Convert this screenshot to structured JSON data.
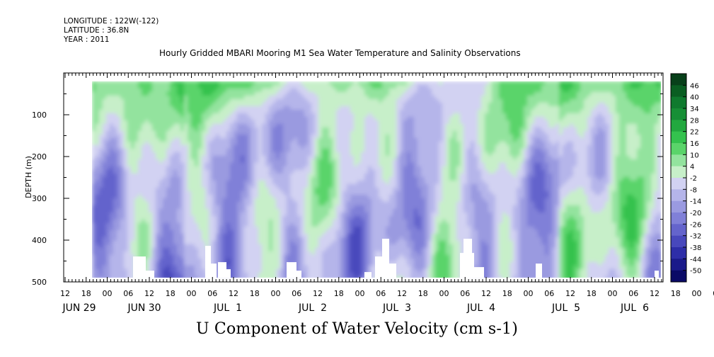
{
  "header": {
    "longitude": "LONGITUDE : 122W(-122)",
    "latitude": "LATITUDE : 36.8N",
    "year": "YEAR : 2011"
  },
  "title": "Hourly Gridded MBARI Mooring M1 Sea Water Temperature and Salinity Observations",
  "bottom_title": "U Component of Water Velocity (cm s-1)",
  "chart_data": {
    "type": "heatmap",
    "title": "Hourly Gridded MBARI Mooring M1 Sea Water Temperature and Salinity Observations",
    "xlabel": "",
    "ylabel": "DEPTH (m)",
    "variable": "U Component of Water Velocity (cm s-1)",
    "y_axis": {
      "range": [
        0,
        500
      ],
      "inverted": true,
      "ticks": [
        100,
        200,
        300,
        400,
        500
      ],
      "tick_labels": [
        "100",
        "200",
        "300",
        "400",
        "500"
      ]
    },
    "x_axis": {
      "hour_ticks": [
        "12",
        "18",
        "00",
        "06",
        "12",
        "18",
        "00",
        "06",
        "12",
        "18",
        "00",
        "06",
        "12",
        "18",
        "00",
        "06",
        "12",
        "18",
        "00",
        "06",
        "12",
        "18",
        "00",
        "06",
        "12",
        "18",
        "00",
        "06",
        "12",
        "18",
        "00",
        "06",
        "12"
      ],
      "day_labels": [
        "JUN 29",
        "JUN 30",
        "JUL  1",
        "JUL  2",
        "JUL  3",
        "JUL  4",
        "JUL  5",
        "JUL  6"
      ]
    },
    "colorbar": {
      "labels": [
        "46",
        "40",
        "34",
        "28",
        "22",
        "16",
        "10",
        "4",
        "-2",
        "-8",
        "-14",
        "-20",
        "-26",
        "-32",
        "-38",
        "-44",
        "-50"
      ],
      "colors": [
        "#08401a",
        "#0a5e22",
        "#0f7a2e",
        "#178f36",
        "#22a83f",
        "#34c24e",
        "#5ad46a",
        "#93e39e",
        "#c7efc9",
        "#d2d2f2",
        "#b5b5ea",
        "#9a9ae0",
        "#8080d8",
        "#6464cc",
        "#4848bc",
        "#2e2ea8",
        "#1a1a8a",
        "#0a0a66"
      ]
    },
    "value_range": [
      -50,
      46
    ],
    "depth_range": [
      20,
      490
    ],
    "data_source_note": "filled contour of U velocity vs time and depth; values mostly between -20 and 34"
  }
}
